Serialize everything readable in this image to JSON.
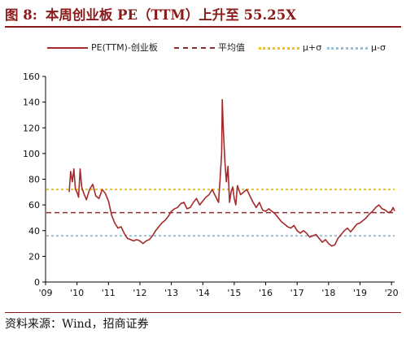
{
  "title": {
    "figure_number": "图 8:",
    "text": "本周创业板 PE（TTM）上升至 55.25X"
  },
  "source": "资料来源：Wind，招商证券",
  "colors": {
    "accent": "#8b1a1a",
    "series_pe": "#a52a2a",
    "mean": "#8b2d2d",
    "plus_sigma": "#f5c400",
    "minus_sigma": "#8ec3e6"
  },
  "chart_data": {
    "type": "line",
    "x_tick_labels": [
      "'09",
      "'10",
      "'11",
      "'12",
      "'13",
      "'14",
      "'15",
      "'16",
      "'17",
      "'18",
      "'19",
      "'20"
    ],
    "y_tick_labels": [
      "0",
      "20",
      "40",
      "60",
      "80",
      "100",
      "120",
      "140",
      "160"
    ],
    "ylim": [
      0,
      160
    ],
    "xlim": [
      2009.0,
      2020.1
    ],
    "grid": false,
    "legend_placement": "top",
    "series": [
      {
        "name": "PE(TTM)-创业板",
        "style": "solid",
        "color": "#a52a2a",
        "x": [
          2009.75,
          2009.8,
          2009.85,
          2009.9,
          2009.95,
          2010.0,
          2010.05,
          2010.1,
          2010.15,
          2010.2,
          2010.3,
          2010.4,
          2010.5,
          2010.6,
          2010.7,
          2010.8,
          2010.9,
          2011.0,
          2011.1,
          2011.2,
          2011.3,
          2011.4,
          2011.5,
          2011.6,
          2011.7,
          2011.8,
          2011.9,
          2012.0,
          2012.1,
          2012.2,
          2012.3,
          2012.4,
          2012.5,
          2012.6,
          2012.7,
          2012.8,
          2012.9,
          2013.0,
          2013.1,
          2013.2,
          2013.3,
          2013.4,
          2013.5,
          2013.6,
          2013.7,
          2013.8,
          2013.9,
          2014.0,
          2014.1,
          2014.2,
          2014.3,
          2014.4,
          2014.5,
          2014.55,
          2014.6,
          2014.62,
          2014.65,
          2014.7,
          2014.75,
          2014.8,
          2014.85,
          2014.9,
          2014.95,
          2015.0,
          2015.05,
          2015.1,
          2015.2,
          2015.3,
          2015.4,
          2015.5,
          2015.6,
          2015.7,
          2015.8,
          2015.9,
          2016.0,
          2016.1,
          2016.2,
          2016.3,
          2016.4,
          2016.5,
          2016.6,
          2016.7,
          2016.8,
          2016.9,
          2017.0,
          2017.1,
          2017.2,
          2017.3,
          2017.4,
          2017.5,
          2017.6,
          2017.7,
          2017.8,
          2017.9,
          2018.0,
          2018.1,
          2018.2,
          2018.3,
          2018.4,
          2018.5,
          2018.6,
          2018.7,
          2018.8,
          2018.9,
          2019.0,
          2019.1,
          2019.2,
          2019.3,
          2019.4,
          2019.5,
          2019.6,
          2019.7,
          2019.8,
          2019.9,
          2020.0,
          2020.05,
          2020.1
        ],
        "y": [
          70,
          86,
          78,
          88,
          72,
          70,
          66,
          88,
          74,
          70,
          64,
          72,
          76,
          67,
          65,
          72,
          69,
          63,
          52,
          46,
          42,
          43,
          38,
          34,
          33,
          32,
          33,
          32,
          30,
          32,
          33,
          36,
          40,
          43,
          46,
          48,
          51,
          55,
          57,
          58,
          61,
          62,
          57,
          58,
          62,
          65,
          60,
          63,
          66,
          68,
          72,
          67,
          62,
          80,
          100,
          142,
          120,
          95,
          78,
          90,
          62,
          70,
          74,
          65,
          60,
          75,
          68,
          70,
          72,
          67,
          62,
          58,
          62,
          56,
          55,
          57,
          55,
          53,
          50,
          47,
          45,
          43,
          42,
          44,
          40,
          38,
          40,
          38,
          35,
          36,
          37,
          34,
          31,
          33,
          30,
          28,
          29,
          34,
          37,
          40,
          42,
          39,
          42,
          45,
          46,
          48,
          50,
          53,
          55,
          58,
          60,
          57,
          56,
          54,
          55.25,
          58,
          55.25
        ]
      },
      {
        "name": "平均值",
        "style": "dashed",
        "color": "#8b2d2d",
        "value": 54
      },
      {
        "name": "μ+σ",
        "style": "dotted",
        "color": "#f5c400",
        "value": 72
      },
      {
        "name": "μ-σ",
        "style": "dotted",
        "color": "#8ec3e6",
        "value": 36
      }
    ]
  }
}
